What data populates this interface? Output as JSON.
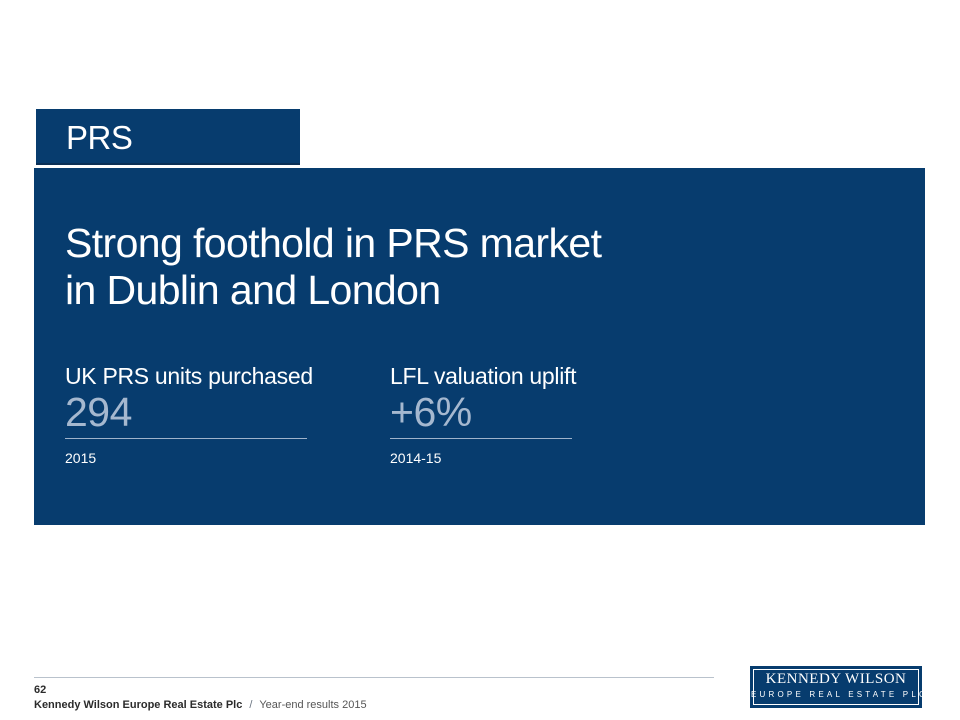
{
  "section": {
    "tab_label": "PRS"
  },
  "hero": {
    "headline_line1": "Strong foothold in PRS market",
    "headline_line2": "in Dublin and London",
    "stats": [
      {
        "label": "UK PRS units purchased",
        "value": "294",
        "period": "2015"
      },
      {
        "label": "LFL valuation uplift",
        "value": "+6%",
        "period": "2014-15"
      }
    ]
  },
  "footer": {
    "page_number": "62",
    "company": "Kennedy Wilson Europe Real Estate Plc",
    "separator": "/",
    "document": "Year-end results 2015"
  },
  "logo": {
    "main": "KENNEDY WILSON",
    "sub": "EUROPE REAL ESTATE PLC"
  },
  "colors": {
    "brand_navy": "#073c6e",
    "value_blue": "#a5b8cf"
  }
}
